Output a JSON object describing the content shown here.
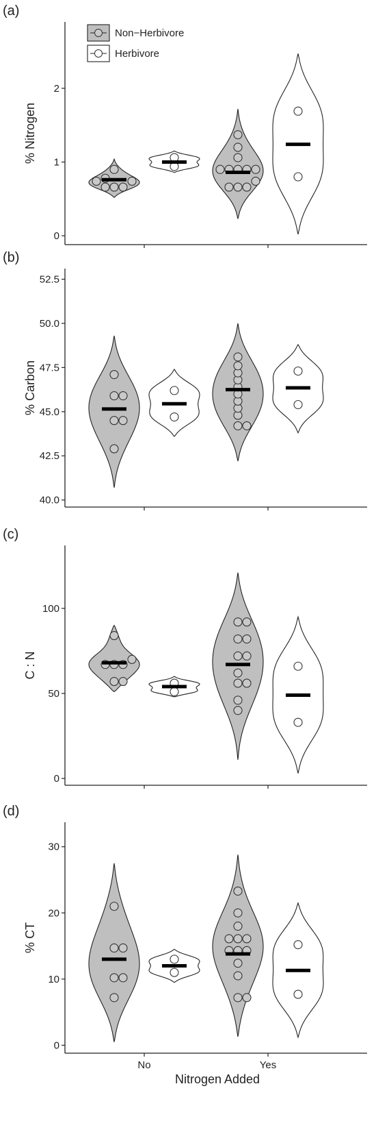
{
  "chart_data": [
    {
      "type": "violin",
      "panel_label": "(a)",
      "ylabel": "% Nitrogen",
      "ylim": [
        -0.12,
        2.9
      ],
      "yticks": [
        0,
        1,
        2
      ],
      "categories": [
        "No",
        "Yes"
      ],
      "legend": {
        "position": "top-left",
        "entries": [
          {
            "name": "Non−Herbivore",
            "fill": "#bfbfbf"
          },
          {
            "name": "Herbivore",
            "fill": "#ffffff"
          }
        ]
      },
      "groups": [
        {
          "category": "No",
          "series": "Non−Herbivore",
          "median": 0.76,
          "range": [
            0.52,
            1.04
          ],
          "points": [
            0.9,
            0.78,
            0.74,
            0.74,
            0.66,
            0.66,
            0.66
          ]
        },
        {
          "category": "No",
          "series": "Herbivore",
          "median": 1.0,
          "range": [
            0.86,
            1.15
          ],
          "points": [
            1.06,
            0.94
          ]
        },
        {
          "category": "Yes",
          "series": "Non−Herbivore",
          "median": 0.86,
          "range": [
            0.23,
            1.72
          ],
          "points": [
            1.37,
            1.2,
            1.06,
            0.9,
            0.9,
            0.9,
            0.9,
            0.9,
            0.74,
            0.66,
            0.66,
            0.66
          ]
        },
        {
          "category": "Yes",
          "series": "Herbivore",
          "median": 1.24,
          "range": [
            0.02,
            2.47
          ],
          "points": [
            1.69,
            0.8
          ]
        }
      ]
    },
    {
      "type": "violin",
      "panel_label": "(b)",
      "ylabel": "% Carbon",
      "ylim": [
        39.6,
        53.1
      ],
      "yticks": [
        40.0,
        42.5,
        45.0,
        47.5,
        50.0,
        52.5
      ],
      "categories": [
        "No",
        "Yes"
      ],
      "groups": [
        {
          "category": "No",
          "series": "Non−Herbivore",
          "median": 45.15,
          "range": [
            40.7,
            49.3
          ],
          "points": [
            47.1,
            45.9,
            45.9,
            44.5,
            44.5,
            42.9
          ]
        },
        {
          "category": "No",
          "series": "Herbivore",
          "median": 45.45,
          "range": [
            43.6,
            47.4
          ],
          "points": [
            46.2,
            44.7
          ]
        },
        {
          "category": "Yes",
          "series": "Non−Herbivore",
          "median": 46.25,
          "range": [
            42.2,
            50.0
          ],
          "points": [
            48.1,
            47.6,
            47.2,
            46.8,
            46.4,
            46.0,
            45.6,
            45.2,
            44.8,
            44.2,
            44.2
          ]
        },
        {
          "category": "Yes",
          "series": "Herbivore",
          "median": 46.35,
          "range": [
            43.8,
            48.8
          ],
          "points": [
            47.3,
            45.4
          ]
        }
      ]
    },
    {
      "type": "violin",
      "panel_label": "(c)",
      "ylabel": "C : N",
      "ylim": [
        -4,
        137
      ],
      "yticks": [
        0,
        50,
        100
      ],
      "categories": [
        "No",
        "Yes"
      ],
      "groups": [
        {
          "category": "No",
          "series": "Non−Herbivore",
          "median": 68,
          "range": [
            51,
            90
          ],
          "points": [
            84,
            70,
            67,
            67,
            67,
            57,
            57
          ]
        },
        {
          "category": "No",
          "series": "Herbivore",
          "median": 54,
          "range": [
            48,
            60
          ],
          "points": [
            56,
            51
          ]
        },
        {
          "category": "Yes",
          "series": "Non−Herbivore",
          "median": 67,
          "range": [
            11,
            121
          ],
          "points": [
            92,
            92,
            82,
            82,
            72,
            72,
            62,
            56,
            56,
            46,
            40
          ]
        },
        {
          "category": "Yes",
          "series": "Herbivore",
          "median": 49,
          "range": [
            3,
            95
          ],
          "points": [
            66,
            33
          ]
        }
      ]
    },
    {
      "type": "violin",
      "panel_label": "(d)",
      "ylabel": "% CT",
      "ylim": [
        -1.2,
        33.7
      ],
      "yticks": [
        0,
        10,
        20,
        30
      ],
      "categories": [
        "No",
        "Yes"
      ],
      "xlabel": "Nitrogen Added",
      "groups": [
        {
          "category": "No",
          "series": "Non−Herbivore",
          "median": 13.0,
          "range": [
            0.5,
            27.5
          ],
          "points": [
            21.0,
            14.7,
            14.7,
            10.2,
            10.2,
            7.2
          ]
        },
        {
          "category": "No",
          "series": "Herbivore",
          "median": 12.0,
          "range": [
            9.5,
            14.5
          ],
          "points": [
            13.0,
            11.0
          ]
        },
        {
          "category": "Yes",
          "series": "Non−Herbivore",
          "median": 13.8,
          "range": [
            1.3,
            28.8
          ],
          "points": [
            23.3,
            20.0,
            18.0,
            16.1,
            16.1,
            16.1,
            14.3,
            14.3,
            14.3,
            12.4,
            10.5,
            7.2,
            7.2
          ]
        },
        {
          "category": "Yes",
          "series": "Herbivore",
          "median": 11.3,
          "range": [
            1.2,
            21.5
          ],
          "points": [
            15.2,
            7.7
          ]
        }
      ]
    }
  ]
}
